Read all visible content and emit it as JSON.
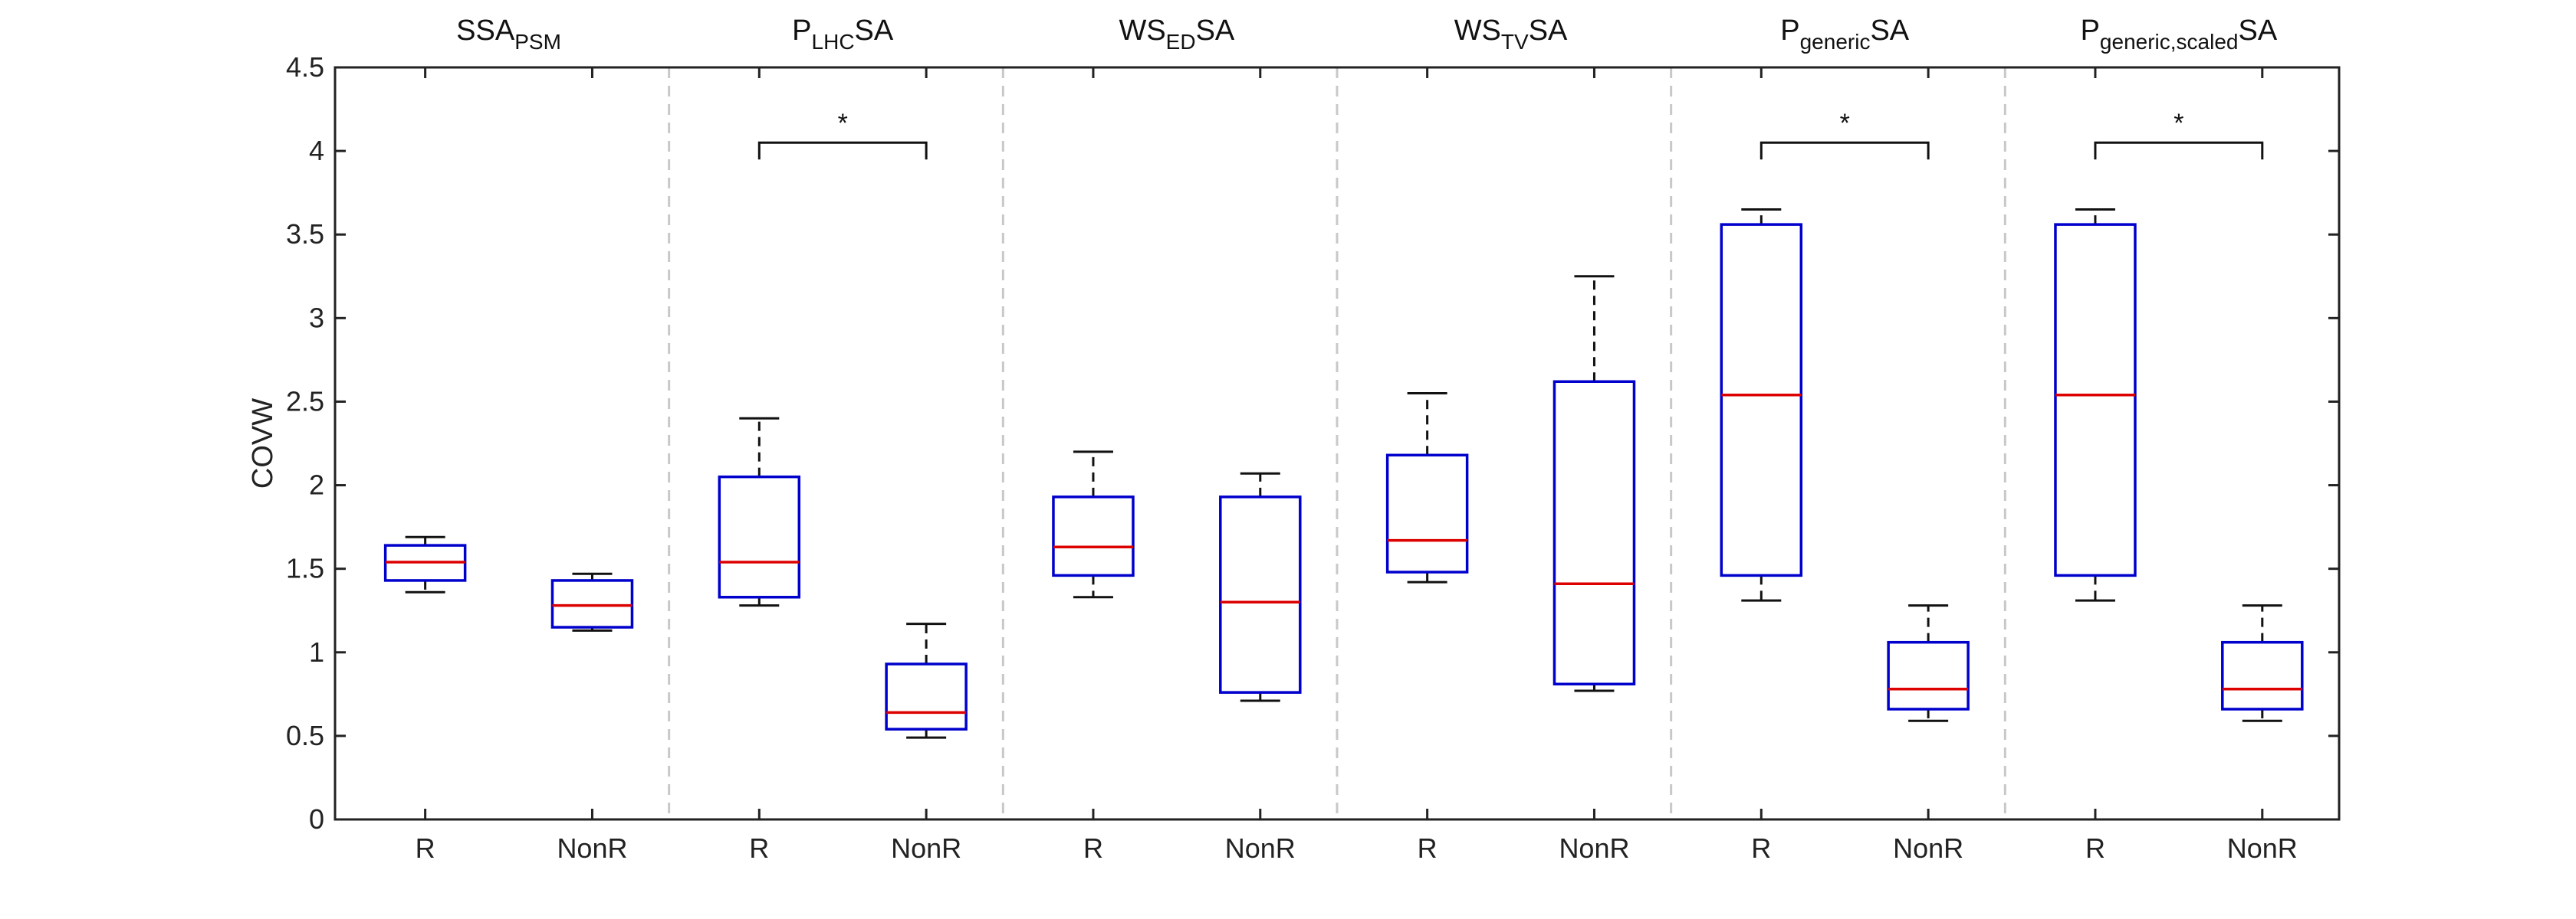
{
  "chart_data": {
    "type": "boxplot",
    "ylabel": "COVW",
    "ylim": [
      0,
      4.5
    ],
    "yticks": [
      "0",
      "0.5",
      "1",
      "1.5",
      "2",
      "2.5",
      "3",
      "3.5",
      "4",
      "4.5"
    ],
    "ytick_values": [
      0,
      0.5,
      1,
      1.5,
      2,
      2.5,
      3,
      3.5,
      4,
      4.5
    ],
    "box_color": "#0000cc",
    "median_color": "#dd0000",
    "groups": [
      {
        "title_main": "SSA",
        "title_sub": "PSM",
        "title_after": "",
        "boxes": [
          {
            "label": "R",
            "min": 1.36,
            "q1": 1.43,
            "median": 1.54,
            "q3": 1.64,
            "max": 1.69
          },
          {
            "label": "NonR",
            "min": 1.13,
            "q1": 1.15,
            "median": 1.28,
            "q3": 1.43,
            "max": 1.47
          }
        ],
        "significant": false
      },
      {
        "title_main": "P",
        "title_sub": "LHC",
        "title_after": "SA",
        "boxes": [
          {
            "label": "R",
            "min": 1.28,
            "q1": 1.33,
            "median": 1.54,
            "q3": 2.05,
            "max": 2.4
          },
          {
            "label": "NonR",
            "min": 0.49,
            "q1": 0.54,
            "median": 0.64,
            "q3": 0.93,
            "max": 1.17
          }
        ],
        "significant": true,
        "significance_marker": "*"
      },
      {
        "title_main": "WS",
        "title_sub": "ED",
        "title_after": "SA",
        "boxes": [
          {
            "label": "R",
            "min": 1.33,
            "q1": 1.46,
            "median": 1.63,
            "q3": 1.93,
            "max": 2.2
          },
          {
            "label": "NonR",
            "min": 0.71,
            "q1": 0.76,
            "median": 1.3,
            "q3": 1.93,
            "max": 2.07
          }
        ],
        "significant": false
      },
      {
        "title_main": "WS",
        "title_sub": "TV",
        "title_after": "SA",
        "boxes": [
          {
            "label": "R",
            "min": 1.42,
            "q1": 1.48,
            "median": 1.67,
            "q3": 2.18,
            "max": 2.55
          },
          {
            "label": "NonR",
            "min": 0.77,
            "q1": 0.81,
            "median": 1.41,
            "q3": 2.62,
            "max": 3.25
          }
        ],
        "significant": false
      },
      {
        "title_main": "P",
        "title_sub": "generic",
        "title_after": "SA",
        "boxes": [
          {
            "label": "R",
            "min": 1.31,
            "q1": 1.46,
            "median": 2.54,
            "q3": 3.56,
            "max": 3.65
          },
          {
            "label": "NonR",
            "min": 0.59,
            "q1": 0.66,
            "median": 0.78,
            "q3": 1.06,
            "max": 1.28
          }
        ],
        "significant": true,
        "significance_marker": "*"
      },
      {
        "title_main": "P",
        "title_sub": "generic,scaled",
        "title_after": "SA",
        "boxes": [
          {
            "label": "R",
            "min": 1.31,
            "q1": 1.46,
            "median": 2.54,
            "q3": 3.56,
            "max": 3.65
          },
          {
            "label": "NonR",
            "min": 0.59,
            "q1": 0.66,
            "median": 0.78,
            "q3": 1.06,
            "max": 1.28
          }
        ],
        "significant": true,
        "significance_marker": "*"
      }
    ]
  }
}
